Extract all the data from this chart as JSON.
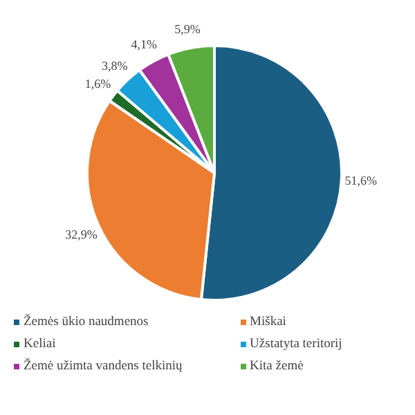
{
  "chart_data": {
    "type": "pie",
    "categories": [
      "Žemės ūkio naudmenos",
      "Miškai",
      "Keliai",
      "Užstatyta teritorij",
      "Žemė užimta vandens telkinių",
      "Kita žemė"
    ],
    "values": [
      51.6,
      32.9,
      1.6,
      3.8,
      4.1,
      5.9
    ],
    "value_labels": [
      "51,6%",
      "32,9%",
      "1,6%",
      "3,8%",
      "4,1%",
      "5,9%"
    ],
    "colors": [
      "#1b5e83",
      "#ed7d31",
      "#1e6b2a",
      "#1aa0d8",
      "#a2329c",
      "#5aac3f"
    ],
    "legend": "bottom"
  }
}
